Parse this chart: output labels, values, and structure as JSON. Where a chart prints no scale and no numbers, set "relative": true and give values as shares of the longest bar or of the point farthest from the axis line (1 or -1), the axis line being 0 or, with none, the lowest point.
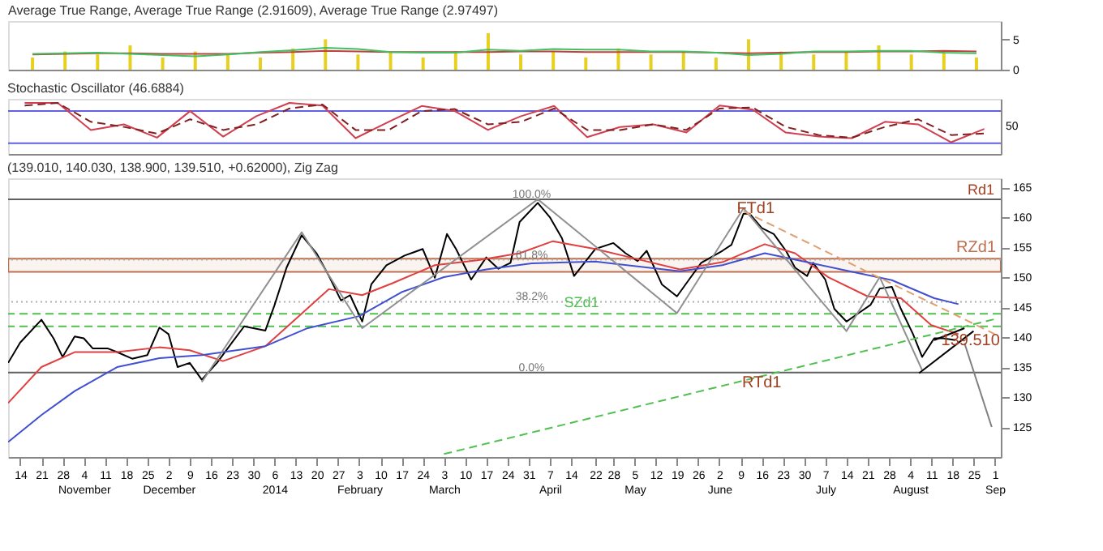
{
  "chart_data": [
    {
      "type": "bar",
      "title": "Average True Range, Average True Range (2.91609), Average True Range (2.97497)",
      "categories": [
        null,
        null,
        null,
        null,
        null,
        null,
        null,
        null,
        null,
        null,
        null,
        null,
        null,
        null,
        null,
        null,
        null,
        null,
        null,
        null,
        null,
        null,
        null,
        null,
        null,
        null,
        null,
        null,
        null,
        null
      ],
      "ylim": [
        0,
        8
      ],
      "yticks": [
        0,
        5
      ],
      "tick_labels": "y",
      "grid": false,
      "series": [
        {
          "type": "bar",
          "color": "#e8d020",
          "values": [
            2,
            3,
            2.5,
            4,
            2,
            3,
            2.5,
            2,
            3.5,
            5,
            2.5,
            3,
            2,
            3,
            6,
            2.5,
            3,
            2,
            3.5,
            2.5,
            3,
            2,
            5,
            3,
            2.5,
            3,
            4,
            2.5,
            3,
            2
          ]
        },
        {
          "type": "line",
          "color": "#c04040",
          "values": [
            2.5,
            2.6,
            2.7,
            2.7,
            2.6,
            2.6,
            2.6,
            2.8,
            2.9,
            3.1,
            3.0,
            2.9,
            2.9,
            2.9,
            2.9,
            3.0,
            3.0,
            2.9,
            2.9,
            2.9,
            2.9,
            2.8,
            2.7,
            2.8,
            2.9,
            2.9,
            3.0,
            3.0,
            3.1,
            3.0
          ]
        },
        {
          "type": "line",
          "color": "#40c060",
          "values": [
            2.6,
            2.7,
            2.8,
            2.6,
            2.4,
            2.2,
            2.5,
            2.9,
            3.2,
            3.6,
            3.4,
            2.9,
            2.8,
            2.8,
            3.3,
            3.1,
            3.4,
            3.3,
            3.3,
            3.0,
            3.0,
            2.8,
            2.4,
            2.6,
            3.0,
            3.0,
            3.1,
            3.1,
            2.8,
            2.7
          ]
        }
      ]
    },
    {
      "type": "line",
      "relative": true,
      "title": "Stochastic Oscillator (46.6884)",
      "categories": [
        null,
        null,
        null,
        null,
        null,
        null,
        null,
        null,
        null,
        null,
        null,
        null,
        null,
        null,
        null,
        null,
        null,
        null,
        null,
        null,
        null,
        null,
        null,
        null,
        null,
        null,
        null,
        null,
        null,
        null
      ],
      "tick_labels": false,
      "ref_lines": [
        {
          "axis": "y",
          "value": 0.21,
          "color": "#6060e0"
        },
        {
          "axis": "y",
          "value": 0.84,
          "color": "#6060e0"
        }
      ],
      "annotations": [
        "50"
      ],
      "series": [
        {
          "color": "#d04050",
          "line_style": "solid",
          "values": [
            1,
            1,
            0.47,
            0.58,
            0.32,
            0.84,
            0.34,
            0.74,
            1,
            0.95,
            0.31,
            0.63,
            0.94,
            0.84,
            0.47,
            0.74,
            0.94,
            0.33,
            0.53,
            0.58,
            0.42,
            0.95,
            0.87,
            0.42,
            0.34,
            0.31,
            0.63,
            0.58,
            0.23,
            0.49
          ]
        },
        {
          "color": "#802020",
          "line_style": "dashed",
          "values": [
            0.95,
            1,
            0.63,
            0.53,
            0.4,
            0.68,
            0.47,
            0.58,
            0.89,
            0.97,
            0.47,
            0.47,
            0.84,
            0.88,
            0.58,
            0.63,
            0.89,
            0.47,
            0.47,
            0.58,
            0.47,
            0.89,
            0.91,
            0.53,
            0.37,
            0.32,
            0.53,
            0.68,
            0.37,
            0.4
          ]
        }
      ]
    },
    {
      "type": "line",
      "title": "(139.010, 140.030, 138.900, 139.510, +0.62000), Zig Zag",
      "xlim": [
        "2013-10-10",
        "2014-09-03"
      ],
      "ylim": [
        120,
        166.5
      ],
      "yticks": [
        125,
        130,
        135,
        140,
        145,
        150,
        155,
        160,
        165
      ],
      "grid": false,
      "xticks": [
        {
          "value": "2013-10-14",
          "label": "14"
        },
        {
          "value": "2013-10-21",
          "label": "21"
        },
        {
          "value": "2013-10-28",
          "label": "28"
        },
        {
          "value": "2013-11-04",
          "label": "4\nNovember"
        },
        {
          "value": "2013-11-11",
          "label": "11"
        },
        {
          "value": "2013-11-18",
          "label": "18"
        },
        {
          "value": "2013-11-25",
          "label": "25"
        },
        {
          "value": "2013-12-02",
          "label": "2\nDecember"
        },
        {
          "value": "2013-12-09",
          "label": "9"
        },
        {
          "value": "2013-12-16",
          "label": "16"
        },
        {
          "value": "2013-12-23",
          "label": "23"
        },
        {
          "value": "2013-12-30",
          "label": "30"
        },
        {
          "value": "2014-01-06",
          "label": "6\n2014"
        },
        {
          "value": "2014-01-13",
          "label": "13"
        },
        {
          "value": "2014-01-20",
          "label": "20"
        },
        {
          "value": "2014-01-27",
          "label": "27"
        },
        {
          "value": "2014-02-03",
          "label": "3\nFebruary"
        },
        {
          "value": "2014-02-10",
          "label": "10"
        },
        {
          "value": "2014-02-17",
          "label": "17"
        },
        {
          "value": "2014-02-24",
          "label": "24"
        },
        {
          "value": "2014-03-03",
          "label": "3\nMarch"
        },
        {
          "value": "2014-03-10",
          "label": "10"
        },
        {
          "value": "2014-03-17",
          "label": "17"
        },
        {
          "value": "2014-03-24",
          "label": "24"
        },
        {
          "value": "2014-03-31",
          "label": "31"
        },
        {
          "value": "2014-04-07",
          "label": "7\nApril"
        },
        {
          "value": "2014-04-14",
          "label": "14"
        },
        {
          "value": "2014-04-22",
          "label": "22"
        },
        {
          "value": "2014-04-28",
          "label": "28"
        },
        {
          "value": "2014-05-05",
          "label": "5\nMay"
        },
        {
          "value": "2014-05-12",
          "label": "12"
        },
        {
          "value": "2014-05-19",
          "label": "19"
        },
        {
          "value": "2014-05-26",
          "label": "26"
        },
        {
          "value": "2014-06-02",
          "label": "2\nJune"
        },
        {
          "value": "2014-06-09",
          "label": "9"
        },
        {
          "value": "2014-06-16",
          "label": "16"
        },
        {
          "value": "2014-06-23",
          "label": "23"
        },
        {
          "value": "2014-06-30",
          "label": "30"
        },
        {
          "value": "2014-07-07",
          "label": "7\nJuly"
        },
        {
          "value": "2014-07-14",
          "label": "14"
        },
        {
          "value": "2014-07-21",
          "label": "21"
        },
        {
          "value": "2014-07-28",
          "label": "28"
        },
        {
          "value": "2014-08-04",
          "label": "4\nAugust"
        },
        {
          "value": "2014-08-11",
          "label": "11"
        },
        {
          "value": "2014-08-18",
          "label": "18"
        },
        {
          "value": "2014-08-25",
          "label": "25"
        },
        {
          "value": "2014-09-01",
          "label": "1\nSep"
        }
      ],
      "ref_lines": [
        {
          "axis": "y",
          "value": 163,
          "color": "#606060"
        },
        {
          "axis": "y",
          "value": 152.9,
          "color": "#b0b0b0",
          "line_style": "dotted"
        },
        {
          "axis": "y",
          "value": 145.9,
          "color": "#b0b0b0",
          "line_style": "dotted"
        },
        {
          "axis": "y",
          "value": 134.1,
          "color": "#606060"
        },
        {
          "axis": "y",
          "value": 143.9,
          "label": "SZd1",
          "color": "#50c050",
          "line_style": "dashed"
        },
        {
          "axis": "y",
          "value": 141.8,
          "color": "#50c050",
          "line_style": "dashed"
        }
      ],
      "bands": [
        {
          "axis": "y",
          "from": 150.9,
          "to": 153.1,
          "label": "RZd1",
          "color": "#c07050"
        }
      ],
      "annotations": [
        {
          "text": "100.0%",
          "x": "2014-04-01",
          "y": 163.8
        },
        {
          "text": "61.8%",
          "x": "2014-04-01",
          "y": 153.7
        },
        {
          "text": "38.2%",
          "x": "2014-04-01",
          "y": 146.7
        },
        {
          "text": "0.0%",
          "x": "2014-04-01",
          "y": 134.9
        },
        {
          "text": "FTd1",
          "x": "2014-06-14",
          "y": 161.5
        },
        {
          "text": "RTd1",
          "x": "2014-06-16",
          "y": 132.5
        },
        "Rd1",
        {
          "text": "139.510",
          "x": "2014-08-24",
          "y": 139.51
        }
      ],
      "series": [
        {
          "color": "#000000",
          "x": [
            "2013-10-10",
            "2013-10-14",
            "2013-10-21",
            "2013-10-25",
            "2013-10-28",
            "2013-11-01",
            "2013-11-04",
            "2013-11-07",
            "2013-11-12",
            "2013-11-15",
            "2013-11-20",
            "2013-11-25",
            "2013-11-29",
            "2013-12-02",
            "2013-12-05",
            "2013-12-09",
            "2013-12-13",
            "2013-12-18",
            "2013-12-23",
            "2013-12-27",
            "2014-01-03",
            "2014-01-06",
            "2014-01-10",
            "2014-01-15",
            "2014-01-20",
            "2014-01-24",
            "2014-01-28",
            "2014-01-31",
            "2014-02-04",
            "2014-02-07",
            "2014-02-12",
            "2014-02-18",
            "2014-02-24",
            "2014-02-28",
            "2014-03-04",
            "2014-03-07",
            "2014-03-12",
            "2014-03-17",
            "2014-03-21",
            "2014-03-25",
            "2014-03-28",
            "2014-04-03",
            "2014-04-07",
            "2014-04-11",
            "2014-04-15",
            "2014-04-22",
            "2014-04-28",
            "2014-05-02",
            "2014-05-06",
            "2014-05-09",
            "2014-05-14",
            "2014-05-19",
            "2014-05-23",
            "2014-05-27",
            "2014-06-03",
            "2014-06-06",
            "2014-06-10",
            "2014-06-12",
            "2014-06-16",
            "2014-06-20",
            "2014-06-24",
            "2014-06-27",
            "2014-07-01",
            "2014-07-03",
            "2014-07-07",
            "2014-07-10",
            "2014-07-14",
            "2014-07-18",
            "2014-07-22",
            "2014-07-25",
            "2014-07-29",
            "2014-08-01",
            "2014-08-05",
            "2014-08-08",
            "2014-08-12",
            "2014-08-15",
            "2014-08-19"
          ],
          "values": [
            135.7,
            139.1,
            142.9,
            139.8,
            136.7,
            140.1,
            139.8,
            138.1,
            138.1,
            137.5,
            136.4,
            137.0,
            141.6,
            140.5,
            135.0,
            135.7,
            132.9,
            135.7,
            139.1,
            141.8,
            141.1,
            145.3,
            151.6,
            157.0,
            153.9,
            150.2,
            146.1,
            147.0,
            142.6,
            148.8,
            152.0,
            153.6,
            154.7,
            149.9,
            157.2,
            154.7,
            149.6,
            153.3,
            151.4,
            152.4,
            159.2,
            162.4,
            160.0,
            156.5,
            150.2,
            154.7,
            155.7,
            154.0,
            152.7,
            154.4,
            148.8,
            146.8,
            149.6,
            152.4,
            154.4,
            155.4,
            160.6,
            160.6,
            158.2,
            157.2,
            154.4,
            151.6,
            150.2,
            152.4,
            149.6,
            144.7,
            142.6,
            144.0,
            145.4,
            148.1,
            148.4,
            144.7,
            140.5,
            136.7,
            139.8,
            139.8,
            139.5
          ]
        },
        {
          "color": "#e04040",
          "x": [
            "2013-10-10",
            "2013-10-21",
            "2013-11-01",
            "2013-11-15",
            "2013-11-29",
            "2013-12-09",
            "2013-12-20",
            "2014-01-03",
            "2014-01-13",
            "2014-01-24",
            "2014-02-04",
            "2014-02-14",
            "2014-02-28",
            "2014-03-14",
            "2014-03-28",
            "2014-04-08",
            "2014-04-22",
            "2014-05-06",
            "2014-05-20",
            "2014-06-03",
            "2014-06-17",
            "2014-06-27",
            "2014-07-08",
            "2014-07-21",
            "2014-08-01",
            "2014-08-11",
            "2014-08-20"
          ],
          "values": [
            129,
            135,
            137.5,
            137.5,
            138.3,
            137.8,
            136,
            138.5,
            143,
            148,
            147,
            149,
            152,
            152.8,
            154,
            156,
            154.7,
            153,
            151.3,
            152.5,
            155.5,
            154,
            150,
            146.8,
            146.5,
            142,
            140.5
          ]
        },
        {
          "color": "#4050d0",
          "x": [
            "2013-10-10",
            "2013-10-21",
            "2013-11-01",
            "2013-11-15",
            "2013-11-29",
            "2013-12-13",
            "2014-01-03",
            "2014-01-17",
            "2014-02-03",
            "2014-02-17",
            "2014-03-03",
            "2014-03-17",
            "2014-04-01",
            "2014-04-22",
            "2014-05-20",
            "2014-06-03",
            "2014-06-17",
            "2014-07-01",
            "2014-07-15",
            "2014-07-29",
            "2014-08-12",
            "2014-08-20"
          ],
          "values": [
            122.5,
            127,
            131,
            135,
            136.5,
            137,
            138.5,
            141.5,
            143.5,
            147.5,
            150,
            151.3,
            152.3,
            152.6,
            151,
            152,
            154,
            152.5,
            151,
            149.5,
            146.5,
            145.5
          ]
        },
        {
          "color": "#909090",
          "x": [
            "2013-12-13",
            "2014-01-15",
            "2014-02-04",
            "2014-04-03",
            "2014-05-19",
            "2014-06-10",
            "2014-07-14",
            "2014-07-25",
            "2014-08-08"
          ],
          "values": [
            132.5,
            157.5,
            141.5,
            163,
            144,
            161.5,
            141,
            150,
            134.5
          ]
        },
        {
          "color": "#e0a070",
          "line_style": "dashed",
          "x": [
            "2014-06-10",
            "2014-09-01"
          ],
          "values": [
            161,
            140.5
          ]
        },
        {
          "color": "#50c050",
          "line_style": "dashed",
          "x": [
            "2014-03-03",
            "2014-09-01"
          ],
          "values": [
            120.5,
            143
          ]
        },
        {
          "color": "#000000",
          "x": [
            "2014-08-07",
            "2014-08-25"
          ],
          "values": [
            134,
            141
          ]
        },
        {
          "color": "#000000",
          "x": [
            "2014-08-12",
            "2014-08-22"
          ],
          "values": [
            139.5,
            141.5
          ]
        },
        {
          "color": "#808080",
          "x": [
            "2014-08-22",
            "2014-08-31"
          ],
          "values": [
            139,
            125
          ]
        }
      ]
    }
  ]
}
